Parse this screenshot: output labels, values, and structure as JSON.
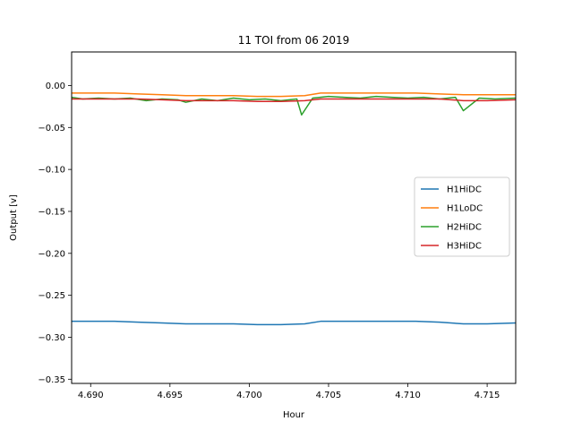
{
  "chart_data": {
    "type": "line",
    "title": "11 TOI from 06 2019",
    "xlabel": "Hour",
    "ylabel": "Output [v]",
    "xlim": [
      4.6888,
      4.7168
    ],
    "ylim": [
      -0.355,
      0.04
    ],
    "xticks": [
      4.69,
      4.695,
      4.7,
      4.705,
      4.71,
      4.715
    ],
    "xtick_labels": [
      "4.690",
      "4.695",
      "4.700",
      "4.705",
      "4.710",
      "4.715"
    ],
    "yticks": [
      0.0,
      -0.05,
      -0.1,
      -0.15,
      -0.2,
      -0.25,
      -0.3,
      -0.35
    ],
    "ytick_labels": [
      "0.00",
      "−0.05",
      "−0.10",
      "−0.15",
      "−0.20",
      "−0.25",
      "−0.30",
      "−0.35"
    ],
    "grid": false,
    "legend_position": "center-right",
    "series": [
      {
        "name": "H1HiDC",
        "color": "#1f77b4",
        "x": [
          4.6888,
          4.69,
          4.6915,
          4.693,
          4.6945,
          4.696,
          4.6975,
          4.699,
          4.7005,
          4.702,
          4.7035,
          4.7045,
          4.706,
          4.7075,
          4.709,
          4.7105,
          4.712,
          4.7135,
          4.715,
          4.7168
        ],
        "y": [
          -0.281,
          -0.281,
          -0.281,
          -0.282,
          -0.283,
          -0.284,
          -0.284,
          -0.284,
          -0.285,
          -0.285,
          -0.284,
          -0.281,
          -0.281,
          -0.281,
          -0.281,
          -0.281,
          -0.282,
          -0.284,
          -0.284,
          -0.283
        ]
      },
      {
        "name": "H1LoDC",
        "color": "#ff7f0e",
        "x": [
          4.6888,
          4.69,
          4.6915,
          4.693,
          4.6945,
          4.696,
          4.6975,
          4.699,
          4.7005,
          4.702,
          4.7035,
          4.7045,
          4.706,
          4.7075,
          4.709,
          4.7105,
          4.712,
          4.7135,
          4.715,
          4.7168
        ],
        "y": [
          -0.009,
          -0.009,
          -0.009,
          -0.01,
          -0.011,
          -0.012,
          -0.012,
          -0.012,
          -0.013,
          -0.013,
          -0.012,
          -0.009,
          -0.009,
          -0.009,
          -0.009,
          -0.009,
          -0.01,
          -0.011,
          -0.011,
          -0.011
        ]
      },
      {
        "name": "H2HiDC",
        "color": "#2ca02c",
        "x": [
          4.6888,
          4.6895,
          4.6905,
          4.6915,
          4.6925,
          4.6935,
          4.6945,
          4.6955,
          4.696,
          4.697,
          4.698,
          4.699,
          4.7,
          4.701,
          4.702,
          4.703,
          4.7033,
          4.704,
          4.705,
          4.706,
          4.707,
          4.708,
          4.709,
          4.71,
          4.711,
          4.712,
          4.713,
          4.7135,
          4.7145,
          4.7155,
          4.7168
        ],
        "y": [
          -0.014,
          -0.016,
          -0.015,
          -0.016,
          -0.015,
          -0.018,
          -0.016,
          -0.017,
          -0.02,
          -0.016,
          -0.018,
          -0.015,
          -0.017,
          -0.016,
          -0.018,
          -0.016,
          -0.035,
          -0.015,
          -0.013,
          -0.014,
          -0.015,
          -0.013,
          -0.014,
          -0.015,
          -0.014,
          -0.016,
          -0.014,
          -0.03,
          -0.015,
          -0.016,
          -0.015
        ]
      },
      {
        "name": "H3HiDC",
        "color": "#d62728",
        "x": [
          4.6888,
          4.69,
          4.6915,
          4.693,
          4.6945,
          4.696,
          4.6975,
          4.699,
          4.7005,
          4.702,
          4.7035,
          4.7045,
          4.706,
          4.7075,
          4.709,
          4.7105,
          4.712,
          4.7135,
          4.715,
          4.7168
        ],
        "y": [
          -0.016,
          -0.016,
          -0.016,
          -0.016,
          -0.017,
          -0.018,
          -0.018,
          -0.018,
          -0.019,
          -0.019,
          -0.018,
          -0.016,
          -0.016,
          -0.016,
          -0.016,
          -0.016,
          -0.016,
          -0.018,
          -0.018,
          -0.017
        ]
      }
    ]
  }
}
